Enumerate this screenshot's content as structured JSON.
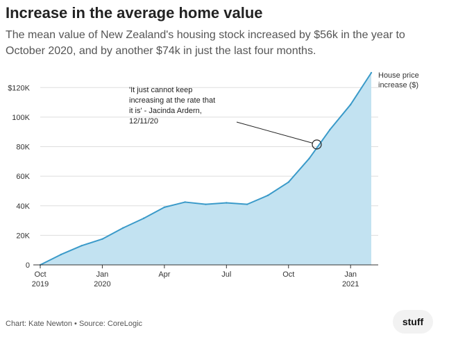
{
  "header": {
    "title": "Increase in the average home value",
    "subtitle": "The mean value of New Zealand's housing stock increased by $56k in the year to October 2020, and by another $74k in just the last four months."
  },
  "footer": {
    "credit": "Chart: Kate Newton • Source: CoreLogic",
    "logo": "stuff"
  },
  "colors": {
    "line": "#3a9ac9",
    "area": "#c2e2f1",
    "grid": "#dddddd",
    "axis": "#333333"
  },
  "chart_data": {
    "type": "area",
    "title": "Increase in the average home value",
    "x": [
      "2019-10",
      "2019-11",
      "2019-12",
      "2020-01",
      "2020-02",
      "2020-03",
      "2020-04",
      "2020-05",
      "2020-06",
      "2020-07",
      "2020-08",
      "2020-09",
      "2020-10",
      "2020-11",
      "2020-12",
      "2021-01",
      "2021-02"
    ],
    "series": [
      {
        "name": "House price increase ($)",
        "label_lines": [
          "House price",
          "increase ($)"
        ],
        "values": [
          0,
          7000,
          13000,
          17500,
          25000,
          31500,
          39000,
          42500,
          41000,
          42000,
          41000,
          47000,
          56000,
          72000,
          91500,
          108500,
          130000
        ]
      }
    ],
    "xlim": [
      "2019-10",
      "2021-02"
    ],
    "ylim": [
      0,
      130000
    ],
    "y_ticks": [
      {
        "value": 0,
        "label": "0"
      },
      {
        "value": 20000,
        "label": "20K"
      },
      {
        "value": 40000,
        "label": "40K"
      },
      {
        "value": 60000,
        "label": "60K"
      },
      {
        "value": 80000,
        "label": "80K"
      },
      {
        "value": 100000,
        "label": "100K"
      },
      {
        "value": 120000,
        "label": "$120K"
      }
    ],
    "x_ticks": [
      {
        "x": "2019-10",
        "label": "Oct",
        "sub": "2019"
      },
      {
        "x": "2020-01",
        "label": "Jan",
        "sub": "2020"
      },
      {
        "x": "2020-04",
        "label": "Apr",
        "sub": ""
      },
      {
        "x": "2020-07",
        "label": "Jul",
        "sub": ""
      },
      {
        "x": "2020-10",
        "label": "Oct",
        "sub": ""
      },
      {
        "x": "2021-01",
        "label": "Jan",
        "sub": "2021"
      }
    ],
    "grid": true,
    "annotation": {
      "date": "2020-11-12",
      "value": 81500,
      "lines": [
        "'It just cannot keep",
        "increasing at the rate that",
        "it is' - Jacinda Ardern,",
        "12/11/20"
      ]
    }
  }
}
